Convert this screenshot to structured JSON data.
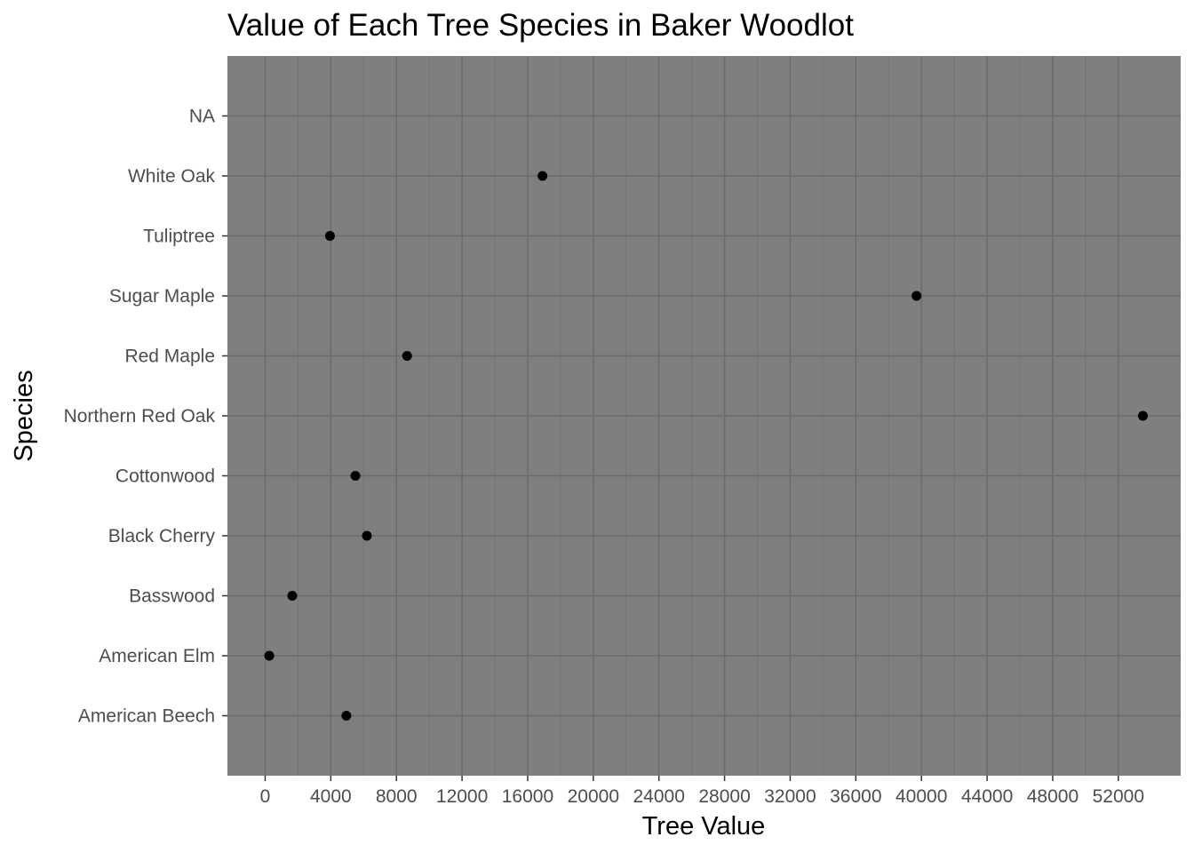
{
  "chart_data": {
    "type": "scatter",
    "title": "Value of Each Tree Species in Baker Woodlot",
    "xlabel": "Tree Value",
    "ylabel": "Species",
    "xlim": [
      -2300,
      55800
    ],
    "x_ticks": [
      0,
      4000,
      8000,
      12000,
      16000,
      20000,
      24000,
      28000,
      32000,
      36000,
      40000,
      44000,
      48000,
      52000
    ],
    "x_tick_labels": [
      "0",
      "4000",
      "8000",
      "12000",
      "16000",
      "20000",
      "24000",
      "28000",
      "32000",
      "36000",
      "40000",
      "44000",
      "48000",
      "52000"
    ],
    "categories": [
      "American Beech",
      "American Elm",
      "Basswood",
      "Black Cherry",
      "Cottonwood",
      "Northern Red Oak",
      "Red Maple",
      "Sugar Maple",
      "Tuliptree",
      "White Oak",
      "NA"
    ],
    "points": [
      {
        "category": "American Beech",
        "value": 4950
      },
      {
        "category": "American Elm",
        "value": 250
      },
      {
        "category": "Basswood",
        "value": 1650
      },
      {
        "category": "Black Cherry",
        "value": 6200
      },
      {
        "category": "Cottonwood",
        "value": 5500
      },
      {
        "category": "Northern Red Oak",
        "value": 53500
      },
      {
        "category": "Red Maple",
        "value": 8650
      },
      {
        "category": "Sugar Maple",
        "value": 39700
      },
      {
        "category": "Tuliptree",
        "value": 3950
      },
      {
        "category": "White Oak",
        "value": 16900
      }
    ],
    "grid": true,
    "colors": {
      "panel_background": "#7f7f7f",
      "grid_major": "#6b6b6b",
      "grid_minor": "#747474",
      "point": "#000000",
      "tick_label": "#4d4d4d"
    }
  }
}
